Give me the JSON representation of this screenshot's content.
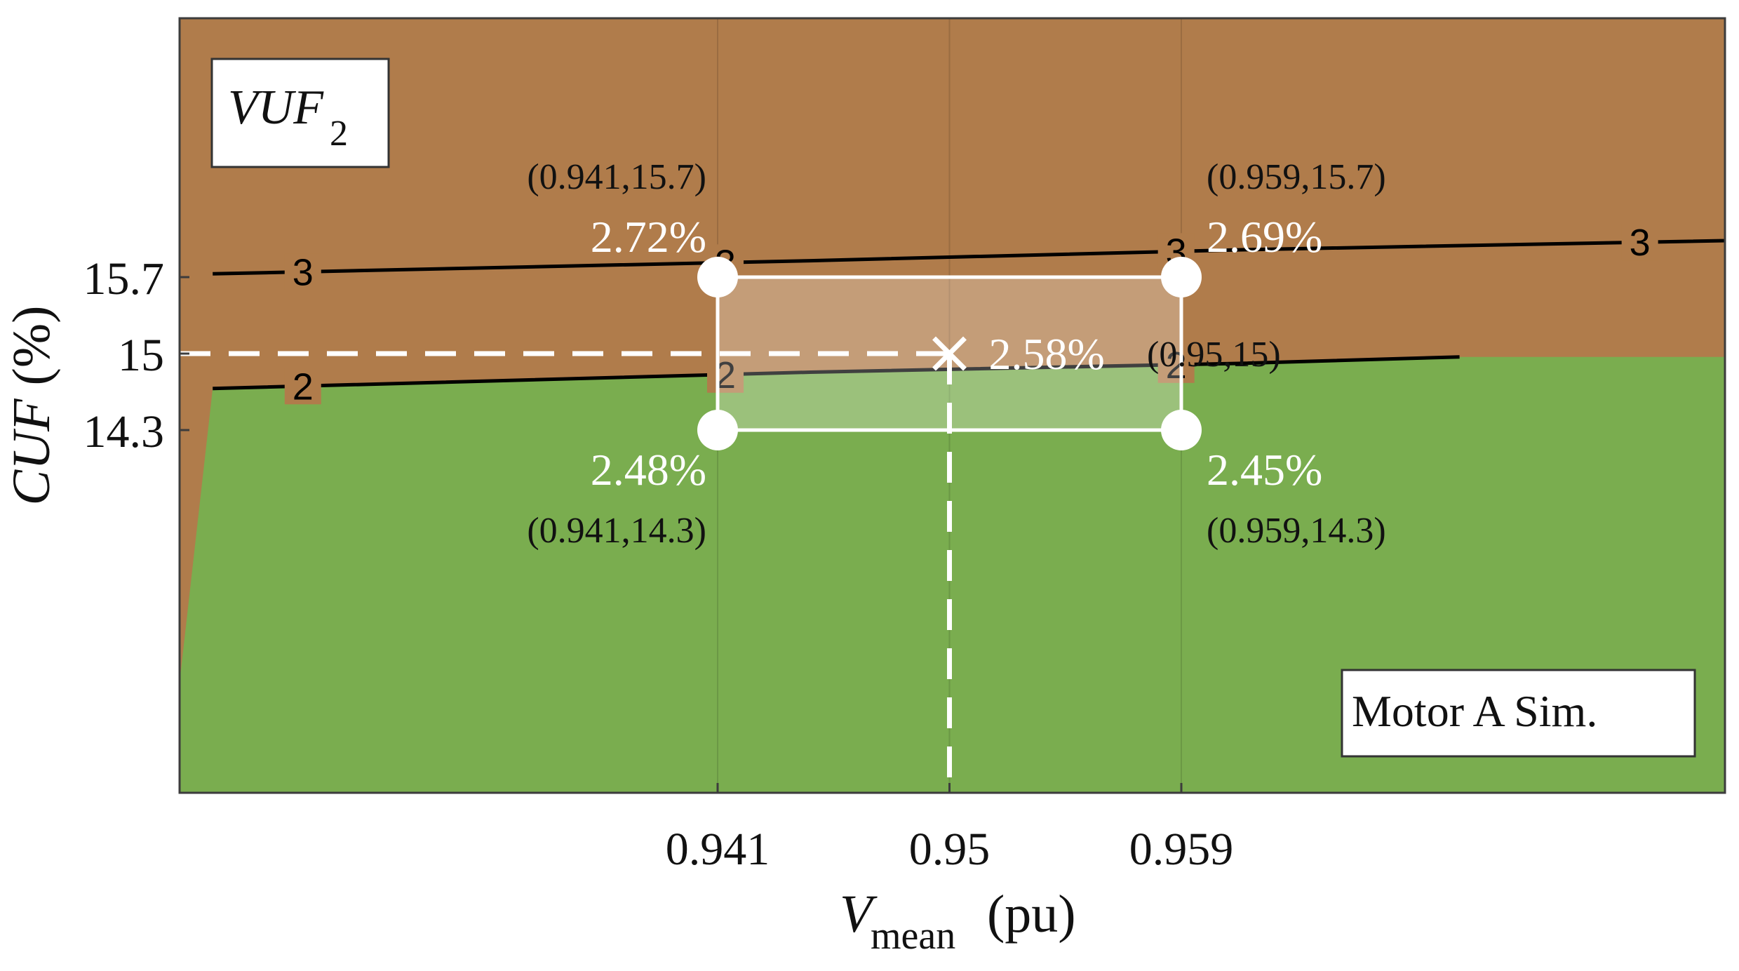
{
  "chart_data": {
    "type": "contour",
    "x_ticks": [
      0.941,
      0.95,
      0.959
    ],
    "y_ticks": [
      14.3,
      15,
      15.7
    ],
    "x_tick_labels": [
      "0.941",
      "0.95",
      "0.959"
    ],
    "y_tick_labels": [
      "14.3",
      "15",
      "15.7"
    ],
    "xlabel": {
      "main": "V",
      "sub": "mean",
      "unit": " (pu)"
    },
    "ylabel": {
      "main": "CUF",
      "unit": " (%)"
    },
    "legend_box": {
      "main": "VUF",
      "sub": "2"
    },
    "annotation_box": "Motor A Sim.",
    "region_colors": {
      "below_2": "#7aad4f",
      "between_2_3": "#b07c4b"
    },
    "contours": [
      {
        "level": 2,
        "label": "2",
        "color": "#000000",
        "label_x": [
          0.9249,
          0.9413,
          0.9588
        ],
        "points": [
          [
            0.9214,
            14.68
          ],
          [
            0.9446,
            14.83
          ],
          [
            0.9612,
            14.91
          ],
          [
            0.9698,
            14.97
          ]
        ]
      },
      {
        "level": 3,
        "label": "3",
        "color": "#000000",
        "label_x": [
          0.9249,
          0.9413,
          0.9588,
          0.9768
        ],
        "points": [
          [
            0.9214,
            15.73
          ],
          [
            0.9446,
            15.85
          ],
          [
            0.9612,
            15.95
          ],
          [
            0.9769,
            16.02
          ],
          [
            0.9998,
            16.12
          ]
        ]
      }
    ],
    "nominal": {
      "x": 0.95,
      "y": 15,
      "value_label": "2.58%",
      "coord_label": "(0.95,15)"
    },
    "corners": [
      {
        "x": 0.941,
        "y": 15.7,
        "value_label": "2.72%",
        "coord_label": "(0.941,15.7)"
      },
      {
        "x": 0.959,
        "y": 15.7,
        "value_label": "2.69%",
        "coord_label": "(0.959,15.7)"
      },
      {
        "x": 0.941,
        "y": 14.3,
        "value_label": "2.48%",
        "coord_label": "(0.941,14.3)"
      },
      {
        "x": 0.959,
        "y": 14.3,
        "value_label": "2.45%",
        "coord_label": "(0.959,14.3)"
      }
    ],
    "colors": {
      "overlay_stroke": "#ffffff",
      "overlay_fill": "#ffffff",
      "text_dark": "#111111"
    }
  }
}
